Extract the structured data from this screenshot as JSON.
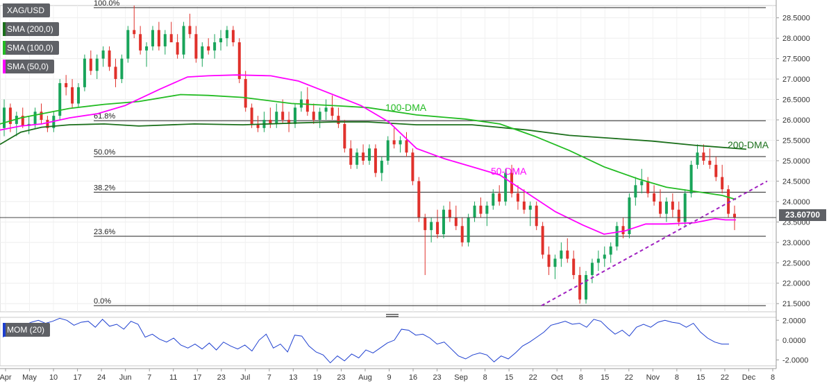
{
  "symbol": "XAG/USD",
  "legend": [
    {
      "label": "XAG/USD",
      "color": "#5f6166"
    },
    {
      "label": "SMA (200,0)",
      "color": "#1b6f1b"
    },
    {
      "label": "SMA (100,0)",
      "color": "#22bb22"
    },
    {
      "label": "SMA (50,0)",
      "color": "#ff00ff"
    }
  ],
  "current_price": "23.60700",
  "colors": {
    "up": "#19a45a",
    "down": "#e0312b",
    "sma200": "#1b6f1b",
    "sma100": "#22bb22",
    "sma50": "#ff00ff",
    "trendline": "#a020c0"
  },
  "chart_data": [
    {
      "type": "candlestick",
      "title": "XAG/USD",
      "ylim": [
        21.3,
        28.8
      ],
      "y_ticks": [
        "28.5000",
        "28.0000",
        "27.5000",
        "27.0000",
        "26.5000",
        "26.0000",
        "25.5000",
        "25.0000",
        "24.5000",
        "24.0000",
        "23.5000",
        "23.0000",
        "22.5000",
        "22.0000",
        "21.5000"
      ],
      "x_ticks": [
        "Apr",
        "May",
        "10",
        "17",
        "24",
        "Jun",
        "7",
        "11",
        "17",
        "23",
        "Jul",
        "7",
        "13",
        "19",
        "23",
        "Aug",
        "9",
        "16",
        "23",
        "Sep",
        "8",
        "15",
        "22",
        "Oct",
        "8",
        "15",
        "22",
        "Nov",
        "8",
        "15",
        "22",
        "Dec",
        "8"
      ],
      "fib_levels": [
        {
          "label": "100.0%",
          "value": 28.75
        },
        {
          "label": "61.8%",
          "value": 25.98
        },
        {
          "label": "50.0%",
          "value": 25.1
        },
        {
          "label": "38.2%",
          "value": 24.23
        },
        {
          "label": "23.6%",
          "value": 23.15
        },
        {
          "label": "0.0%",
          "value": 21.45
        }
      ],
      "annotations": [
        "100-DMA",
        "50-DMA",
        "200-DMA"
      ],
      "series": [
        {
          "name": "SMA (200,0)",
          "points": [
            [
              0,
              25.4
            ],
            [
              15,
              25.55
            ],
            [
              30,
              25.7
            ],
            [
              60,
              25.82
            ],
            [
              100,
              25.88
            ],
            [
              150,
              25.9
            ],
            [
              200,
              25.85
            ],
            [
              280,
              25.9
            ],
            [
              350,
              25.88
            ],
            [
              420,
              25.92
            ],
            [
              480,
              25.95
            ],
            [
              530,
              25.95
            ],
            [
              600,
              25.88
            ],
            [
              680,
              25.88
            ],
            [
              760,
              25.75
            ],
            [
              820,
              25.62
            ],
            [
              880,
              25.55
            ],
            [
              940,
              25.48
            ],
            [
              1000,
              25.38
            ],
            [
              1075,
              25.28
            ]
          ]
        },
        {
          "name": "SMA (100,0)",
          "points": [
            [
              0,
              25.9
            ],
            [
              30,
              26.05
            ],
            [
              60,
              26.15
            ],
            [
              100,
              26.28
            ],
            [
              150,
              26.38
            ],
            [
              200,
              26.45
            ],
            [
              260,
              26.62
            ],
            [
              300,
              26.6
            ],
            [
              350,
              26.55
            ],
            [
              420,
              26.4
            ],
            [
              480,
              26.35
            ],
            [
              530,
              26.3
            ],
            [
              600,
              26.12
            ],
            [
              670,
              26.02
            ],
            [
              720,
              25.9
            ],
            [
              770,
              25.6
            ],
            [
              820,
              25.25
            ],
            [
              870,
              24.85
            ],
            [
              920,
              24.55
            ],
            [
              960,
              24.35
            ],
            [
              1000,
              24.25
            ],
            [
              1040,
              24.15
            ],
            [
              1060,
              24.05
            ]
          ]
        },
        {
          "name": "SMA (50,0)",
          "points": [
            [
              0,
              25.75
            ],
            [
              30,
              25.85
            ],
            [
              60,
              25.9
            ],
            [
              100,
              26.05
            ],
            [
              140,
              26.15
            ],
            [
              180,
              26.35
            ],
            [
              230,
              26.75
            ],
            [
              270,
              27.05
            ],
            [
              300,
              27.08
            ],
            [
              340,
              27.1
            ],
            [
              390,
              27.08
            ],
            [
              430,
              26.95
            ],
            [
              460,
              26.75
            ],
            [
              490,
              26.55
            ],
            [
              520,
              26.35
            ],
            [
              560,
              25.95
            ],
            [
              600,
              25.3
            ],
            [
              640,
              25.05
            ],
            [
              680,
              24.85
            ],
            [
              720,
              24.65
            ],
            [
              760,
              24.2
            ],
            [
              800,
              23.75
            ],
            [
              840,
              23.42
            ],
            [
              870,
              23.2
            ],
            [
              900,
              23.28
            ],
            [
              930,
              23.45
            ],
            [
              960,
              23.45
            ],
            [
              1000,
              23.48
            ],
            [
              1030,
              23.58
            ],
            [
              1045,
              23.55
            ],
            [
              1060,
              23.55
            ]
          ]
        }
      ],
      "ohlc_note": "approximate daily candles Apr-Nov",
      "candles": [
        [
          25.8,
          26.5,
          25.6,
          26.3
        ],
        [
          26.3,
          26.4,
          25.7,
          25.9
        ],
        [
          25.9,
          26.2,
          25.6,
          26.1
        ],
        [
          26.1,
          26.3,
          25.8,
          25.85
        ],
        [
          25.85,
          26.1,
          25.65,
          25.9
        ],
        [
          25.9,
          26.3,
          25.8,
          26.2
        ],
        [
          26.2,
          26.4,
          25.9,
          26.0
        ],
        [
          26.0,
          26.1,
          25.7,
          25.8
        ],
        [
          25.8,
          26.2,
          25.7,
          26.1
        ],
        [
          26.1,
          27.0,
          26.0,
          26.9
        ],
        [
          26.9,
          27.1,
          26.6,
          26.8
        ],
        [
          26.8,
          27.0,
          26.3,
          26.4
        ],
        [
          26.4,
          26.9,
          26.3,
          26.8
        ],
        [
          26.8,
          27.6,
          26.7,
          27.5
        ],
        [
          27.5,
          27.7,
          27.1,
          27.2
        ],
        [
          27.2,
          27.6,
          27.0,
          27.5
        ],
        [
          27.5,
          27.8,
          27.3,
          27.7
        ],
        [
          27.7,
          27.8,
          27.2,
          27.3
        ],
        [
          27.3,
          27.5,
          26.8,
          27.0
        ],
        [
          27.0,
          27.6,
          26.9,
          27.5
        ],
        [
          27.5,
          28.3,
          27.4,
          28.2
        ],
        [
          28.2,
          28.8,
          28.0,
          28.1
        ],
        [
          28.1,
          28.3,
          27.6,
          27.7
        ],
        [
          27.7,
          27.9,
          27.3,
          27.8
        ],
        [
          27.8,
          28.3,
          27.7,
          28.2
        ],
        [
          28.2,
          28.4,
          27.7,
          27.8
        ],
        [
          27.8,
          28.2,
          27.6,
          28.1
        ],
        [
          28.1,
          28.4,
          27.9,
          27.9
        ],
        [
          27.9,
          28.1,
          27.5,
          27.6
        ],
        [
          27.6,
          28.4,
          27.5,
          28.3
        ],
        [
          28.3,
          28.6,
          28.0,
          28.1
        ],
        [
          28.1,
          28.3,
          27.4,
          27.5
        ],
        [
          27.5,
          27.9,
          27.3,
          27.8
        ],
        [
          27.8,
          28.0,
          27.6,
          27.7
        ],
        [
          27.7,
          28.1,
          27.5,
          27.9
        ],
        [
          27.9,
          28.2,
          27.7,
          28.0
        ],
        [
          28.0,
          28.3,
          27.8,
          28.2
        ],
        [
          28.2,
          28.3,
          27.8,
          27.9
        ],
        [
          27.9,
          28.0,
          26.9,
          27.0
        ],
        [
          27.0,
          27.2,
          26.2,
          26.3
        ],
        [
          26.3,
          26.4,
          25.8,
          25.9
        ],
        [
          25.9,
          26.1,
          25.7,
          25.8
        ],
        [
          25.8,
          26.2,
          25.7,
          26.0
        ],
        [
          26.0,
          26.3,
          25.8,
          25.9
        ],
        [
          25.9,
          26.4,
          25.8,
          26.2
        ],
        [
          26.2,
          26.5,
          25.9,
          26.0
        ],
        [
          26.0,
          26.2,
          25.7,
          25.9
        ],
        [
          25.9,
          26.4,
          25.8,
          26.3
        ],
        [
          26.3,
          26.7,
          26.2,
          26.5
        ],
        [
          26.5,
          26.8,
          26.1,
          26.2
        ],
        [
          26.2,
          26.4,
          25.9,
          26.0
        ],
        [
          26.0,
          26.3,
          25.8,
          26.2
        ],
        [
          26.2,
          26.5,
          26.0,
          26.3
        ],
        [
          26.3,
          26.6,
          26.0,
          26.1
        ],
        [
          26.1,
          26.3,
          25.8,
          25.9
        ],
        [
          25.9,
          26.0,
          25.2,
          25.3
        ],
        [
          25.3,
          25.5,
          24.8,
          24.9
        ],
        [
          24.9,
          25.3,
          24.8,
          25.2
        ],
        [
          25.2,
          25.4,
          24.9,
          25.0
        ],
        [
          25.0,
          25.4,
          24.9,
          25.3
        ],
        [
          25.3,
          25.4,
          24.6,
          24.7
        ],
        [
          24.7,
          25.1,
          24.5,
          25.0
        ],
        [
          25.0,
          25.6,
          24.9,
          25.5
        ],
        [
          25.5,
          25.8,
          25.3,
          25.4
        ],
        [
          25.4,
          25.6,
          25.2,
          25.5
        ],
        [
          25.5,
          25.7,
          25.1,
          25.2
        ],
        [
          25.2,
          25.3,
          24.4,
          24.5
        ],
        [
          24.5,
          24.6,
          23.5,
          23.6
        ],
        [
          23.6,
          23.7,
          22.2,
          23.3
        ],
        [
          23.3,
          23.6,
          23.0,
          23.5
        ],
        [
          23.5,
          23.8,
          23.1,
          23.2
        ],
        [
          23.2,
          23.9,
          23.1,
          23.8
        ],
        [
          23.8,
          24.0,
          23.5,
          23.6
        ],
        [
          23.6,
          23.9,
          23.3,
          23.4
        ],
        [
          23.4,
          23.6,
          22.9,
          23.0
        ],
        [
          23.0,
          23.7,
          22.9,
          23.6
        ],
        [
          23.6,
          24.0,
          23.5,
          23.9
        ],
        [
          23.9,
          24.1,
          23.6,
          23.7
        ],
        [
          23.7,
          24.0,
          23.4,
          23.9
        ],
        [
          23.9,
          24.3,
          23.8,
          24.2
        ],
        [
          24.2,
          24.4,
          23.9,
          24.0
        ],
        [
          24.0,
          24.8,
          23.9,
          24.7
        ],
        [
          24.7,
          24.9,
          24.1,
          24.2
        ],
        [
          24.2,
          24.4,
          23.8,
          24.0
        ],
        [
          24.0,
          24.3,
          23.7,
          23.8
        ],
        [
          23.8,
          24.0,
          23.4,
          23.9
        ],
        [
          23.9,
          24.0,
          23.3,
          23.4
        ],
        [
          23.4,
          23.5,
          22.6,
          22.7
        ],
        [
          22.7,
          22.9,
          22.2,
          22.4
        ],
        [
          22.4,
          22.7,
          22.1,
          22.6
        ],
        [
          22.6,
          23.0,
          22.4,
          22.8
        ],
        [
          22.8,
          23.1,
          22.5,
          22.6
        ],
        [
          22.6,
          22.8,
          22.1,
          22.2
        ],
        [
          22.2,
          22.4,
          21.5,
          21.6
        ],
        [
          21.6,
          22.3,
          21.5,
          22.2
        ],
        [
          22.2,
          22.6,
          22.0,
          22.5
        ],
        [
          22.5,
          22.8,
          22.3,
          22.6
        ],
        [
          22.6,
          22.9,
          22.4,
          22.7
        ],
        [
          22.7,
          23.0,
          22.5,
          22.9
        ],
        [
          22.9,
          23.5,
          22.8,
          23.4
        ],
        [
          23.4,
          23.6,
          23.1,
          23.2
        ],
        [
          23.2,
          24.2,
          23.1,
          24.1
        ],
        [
          24.1,
          24.6,
          23.9,
          24.4
        ],
        [
          24.4,
          24.8,
          24.2,
          24.5
        ],
        [
          24.5,
          24.6,
          24.1,
          24.2
        ],
        [
          24.2,
          24.4,
          23.9,
          24.0
        ],
        [
          24.0,
          24.3,
          23.6,
          23.7
        ],
        [
          23.7,
          24.1,
          23.5,
          24.0
        ],
        [
          24.0,
          24.2,
          23.6,
          23.8
        ],
        [
          23.8,
          24.0,
          23.4,
          23.5
        ],
        [
          23.5,
          24.3,
          23.4,
          24.2
        ],
        [
          24.2,
          25.0,
          24.1,
          24.9
        ],
        [
          24.9,
          25.4,
          24.8,
          25.2
        ],
        [
          25.2,
          25.4,
          24.9,
          25.0
        ],
        [
          25.0,
          25.3,
          24.8,
          24.9
        ],
        [
          24.9,
          25.1,
          24.5,
          24.6
        ],
        [
          24.6,
          24.9,
          24.2,
          24.3
        ],
        [
          24.3,
          24.4,
          23.6,
          23.7
        ],
        [
          23.7,
          23.9,
          23.3,
          23.6
        ]
      ]
    },
    {
      "type": "line",
      "title": "MOM (20)",
      "ylim": [
        -2.6,
        2.3
      ],
      "y_ticks": [
        "2.0000",
        "0.0000",
        "-2.0000"
      ],
      "series": [
        {
          "name": "MOM (20)",
          "values": [
            0.3,
            0.8,
            1.0,
            1.5,
            1.8,
            2.0,
            1.7,
            1.9,
            2.2,
            2.0,
            1.5,
            1.8,
            1.9,
            1.3,
            2.1,
            1.4,
            1.6,
            1.1,
            1.9,
            1.6,
            0.3,
            0.6,
            0.1,
            -0.2,
            0.2,
            -0.5,
            -0.8,
            -0.4,
            -0.9,
            -0.3,
            -1.0,
            -0.2,
            -0.6,
            -0.9,
            -0.5,
            -1.1,
            0.0,
            0.6,
            -0.8,
            -0.4,
            -1.2,
            0.5,
            0.4,
            -0.6,
            -1.2,
            -1.5,
            -2.3,
            -1.6,
            -2.1,
            -1.4,
            -1.8,
            -1.0,
            -1.3,
            -0.8,
            -0.3,
            0.0,
            1.1,
            1.0,
            0.5,
            0.6,
            0.2,
            -0.4,
            -0.2,
            -0.9,
            -1.6,
            -1.9,
            -1.5,
            -1.3,
            -1.5,
            -2.2,
            -1.6,
            -1.9,
            -1.3,
            -0.6,
            -0.2,
            0.3,
            0.8,
            1.5,
            1.7,
            1.9,
            1.6,
            1.7,
            1.3,
            2.1,
            1.9,
            1.2,
            0.6,
            1.0,
            0.4,
            1.3,
            1.6,
            1.3,
            1.8,
            2.0,
            1.8,
            1.7,
            1.3,
            1.7,
            0.8,
            0.2,
            -0.2,
            -0.4,
            -0.4
          ]
        }
      ]
    }
  ]
}
